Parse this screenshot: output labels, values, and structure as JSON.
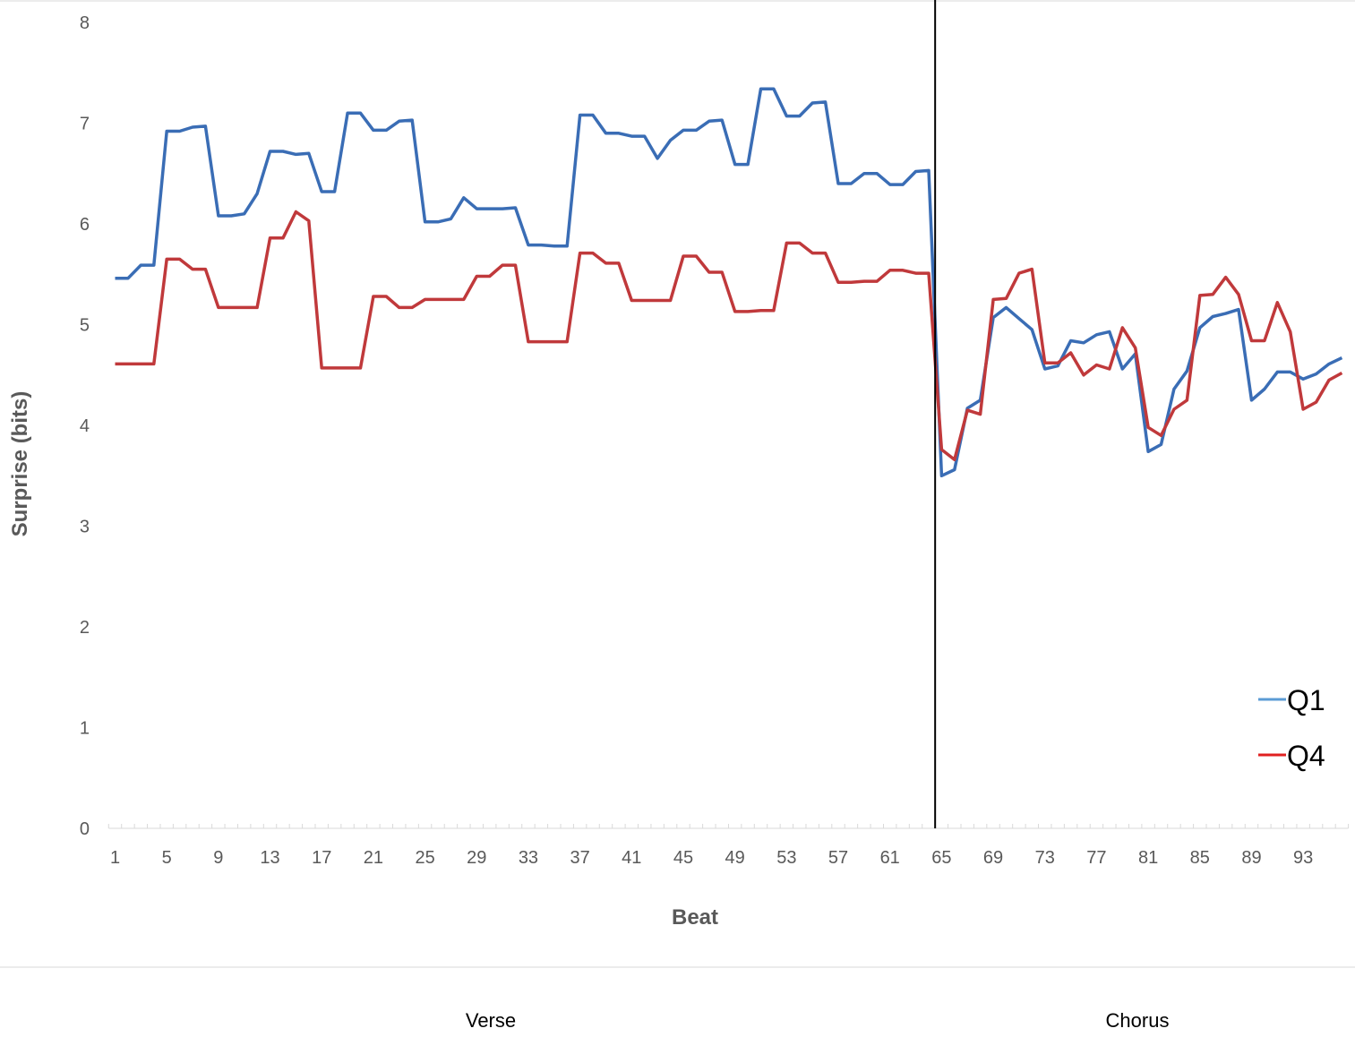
{
  "chart_data": {
    "type": "line",
    "title": "",
    "xlabel": "Beat",
    "ylabel": "Surprise (bits)",
    "ylim": [
      0,
      8
    ],
    "yticks": [
      "0",
      "1",
      "2",
      "3",
      "4",
      "5",
      "6",
      "7",
      "8"
    ],
    "xticks": [
      "1",
      "5",
      "9",
      "13",
      "17",
      "21",
      "25",
      "29",
      "33",
      "37",
      "41",
      "45",
      "49",
      "53",
      "57",
      "61",
      "65",
      "69",
      "73",
      "77",
      "81",
      "85",
      "89",
      "93"
    ],
    "x_range": [
      1,
      96
    ],
    "grid": false,
    "legend_position": "right",
    "divider_beat": 64.5,
    "sections": [
      "Verse",
      "Chorus"
    ],
    "series": [
      {
        "name": "Q1",
        "color": "#3A6DB5",
        "legend_color": "#5B9BD5",
        "values": [
          5.46,
          5.46,
          5.59,
          5.59,
          6.92,
          6.92,
          6.96,
          6.97,
          6.08,
          6.08,
          6.1,
          6.3,
          6.72,
          6.72,
          6.69,
          6.7,
          6.32,
          6.32,
          7.1,
          7.1,
          6.93,
          6.93,
          7.02,
          7.03,
          6.02,
          6.02,
          6.05,
          6.26,
          6.15,
          6.15,
          6.15,
          6.16,
          5.79,
          5.79,
          5.78,
          5.78,
          7.08,
          7.08,
          6.9,
          6.9,
          6.87,
          6.87,
          6.65,
          6.83,
          6.93,
          6.93,
          7.02,
          7.03,
          6.59,
          6.59,
          7.34,
          7.34,
          7.07,
          7.07,
          7.2,
          7.21,
          6.4,
          6.4,
          6.5,
          6.5,
          6.39,
          6.39,
          6.52,
          6.53,
          3.5,
          3.56,
          4.17,
          4.25,
          5.07,
          5.17,
          5.06,
          4.95,
          4.56,
          4.59,
          4.84,
          4.82,
          4.9,
          4.93,
          4.56,
          4.71,
          3.74,
          3.81,
          4.36,
          4.54,
          4.97,
          5.08,
          5.11,
          5.15,
          4.25,
          4.36,
          4.53,
          4.53,
          4.46,
          4.51,
          4.61,
          4.67
        ]
      },
      {
        "name": "Q4",
        "color": "#C0393B",
        "legend_color": "#E02020",
        "values": [
          4.61,
          4.61,
          4.61,
          4.61,
          5.65,
          5.65,
          5.55,
          5.55,
          5.17,
          5.17,
          5.17,
          5.17,
          5.86,
          5.86,
          6.12,
          6.03,
          4.57,
          4.57,
          4.57,
          4.57,
          5.28,
          5.28,
          5.17,
          5.17,
          5.25,
          5.25,
          5.25,
          5.25,
          5.48,
          5.48,
          5.59,
          5.59,
          4.83,
          4.83,
          4.83,
          4.83,
          5.71,
          5.71,
          5.61,
          5.61,
          5.24,
          5.24,
          5.24,
          5.24,
          5.68,
          5.68,
          5.52,
          5.52,
          5.13,
          5.13,
          5.14,
          5.14,
          5.81,
          5.81,
          5.71,
          5.71,
          5.42,
          5.42,
          5.43,
          5.43,
          5.54,
          5.54,
          5.51,
          5.51,
          3.76,
          3.66,
          4.15,
          4.11,
          5.25,
          5.26,
          5.51,
          5.55,
          4.62,
          4.62,
          4.72,
          4.5,
          4.6,
          4.56,
          4.97,
          4.77,
          3.98,
          3.9,
          4.16,
          4.25,
          5.29,
          5.3,
          5.47,
          5.3,
          4.84,
          4.84,
          5.22,
          4.93,
          4.16,
          4.23,
          4.45,
          4.52
        ]
      }
    ]
  }
}
